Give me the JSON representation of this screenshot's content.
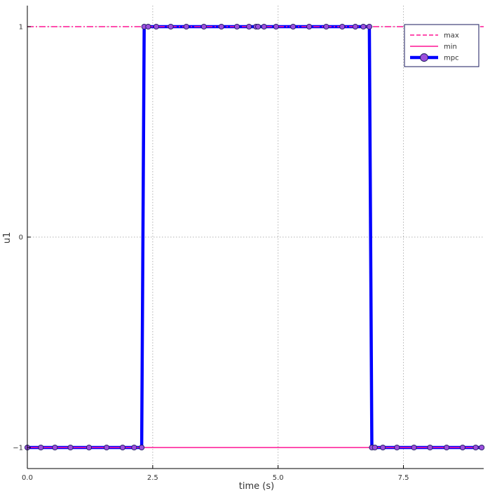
{
  "chart_data": {
    "type": "line",
    "xlabel": "time (s)",
    "ylabel": "u1",
    "xlim": [
      0,
      9.1
    ],
    "ylim": [
      -1.1,
      1.1
    ],
    "grid": true,
    "legend_position": "top-right",
    "x_ticks": [
      0,
      2.5,
      5,
      7.5
    ],
    "x_tick_labels": [
      "0.0",
      "2.5",
      "5.0",
      "7.5"
    ],
    "y_ticks": [
      -1,
      0,
      1
    ],
    "y_tick_labels": [
      "−1",
      "0",
      "1"
    ],
    "series": [
      {
        "name": "max",
        "style": "dashed",
        "color": "#ff1493",
        "x": [
          0,
          9.1
        ],
        "y": [
          1,
          1
        ]
      },
      {
        "name": "min",
        "style": "solid",
        "color": "#ff1493",
        "x": [
          0,
          9.1
        ],
        "y": [
          -1,
          -1
        ]
      },
      {
        "name": "mpc",
        "style": "solid-markers",
        "color": "#0000ff",
        "marker_color": "#9b4fdc",
        "x": [
          0.0,
          0.27,
          0.55,
          0.86,
          1.23,
          1.58,
          1.9,
          2.13,
          2.28,
          2.33,
          2.41,
          2.57,
          2.86,
          3.17,
          3.52,
          3.87,
          4.18,
          4.42,
          4.56,
          4.6,
          4.72,
          4.96,
          5.3,
          5.62,
          5.96,
          6.28,
          6.54,
          6.7,
          6.82,
          6.87,
          6.93,
          7.09,
          7.37,
          7.71,
          8.03,
          8.36,
          8.68,
          8.94,
          9.06
        ],
        "y": [
          -1,
          -1,
          -1,
          -1,
          -1,
          -1,
          -1,
          -1,
          -1,
          1,
          1,
          1,
          1,
          1,
          1,
          1,
          1,
          1,
          1,
          1,
          1,
          1,
          1,
          1,
          1,
          1,
          1,
          1,
          1,
          -1,
          -1,
          -1,
          -1,
          -1,
          -1,
          -1,
          -1,
          -1,
          -1
        ]
      }
    ]
  }
}
